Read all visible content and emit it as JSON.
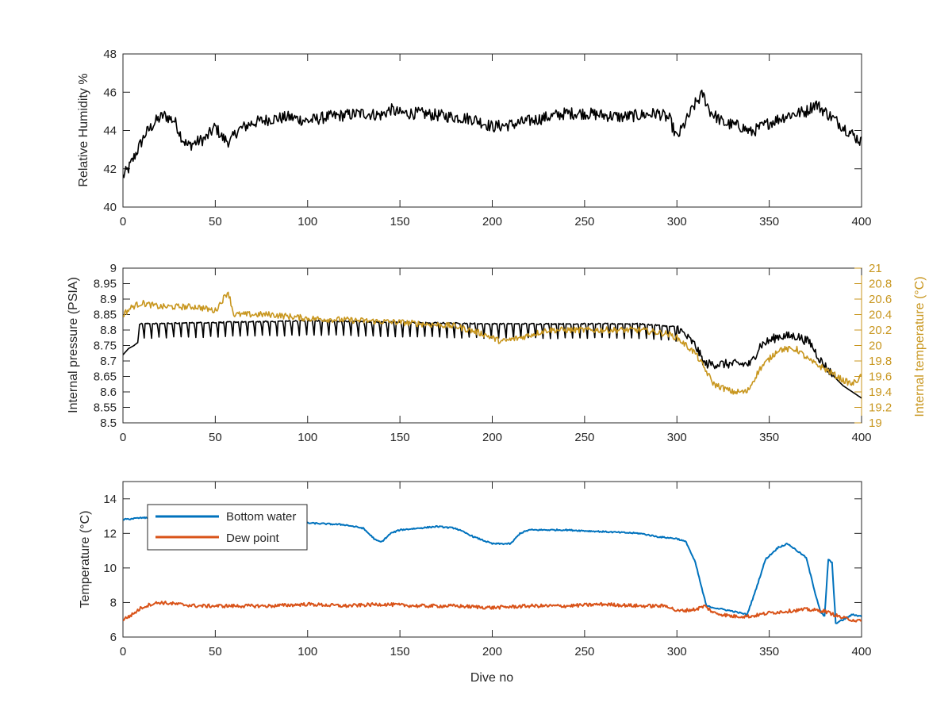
{
  "chart_data": [
    {
      "type": "line",
      "title": "",
      "xlabel": "",
      "ylabel": "Relative Humidity %",
      "xlim": [
        0,
        400
      ],
      "ylim": [
        40,
        48
      ],
      "x_ticks": [
        "0",
        "50",
        "100",
        "150",
        "200",
        "250",
        "300",
        "350",
        "400"
      ],
      "y_ticks": [
        "40",
        "42",
        "44",
        "46",
        "48"
      ],
      "grid": false,
      "series": [
        {
          "color": "#000000",
          "noise": 0.32,
          "points": [
            [
              0,
              41.6
            ],
            [
              3,
              42.0
            ],
            [
              8,
              43.0
            ],
            [
              12,
              43.8
            ],
            [
              18,
              44.5
            ],
            [
              22,
              44.8
            ],
            [
              28,
              44.5
            ],
            [
              32,
              43.6
            ],
            [
              35,
              43.2
            ],
            [
              40,
              43.4
            ],
            [
              45,
              43.6
            ],
            [
              50,
              44.2
            ],
            [
              54,
              43.6
            ],
            [
              58,
              43.4
            ],
            [
              62,
              44.0
            ],
            [
              70,
              44.4
            ],
            [
              80,
              44.6
            ],
            [
              90,
              44.7
            ],
            [
              100,
              44.5
            ],
            [
              110,
              44.7
            ],
            [
              120,
              44.8
            ],
            [
              130,
              44.9
            ],
            [
              140,
              44.8
            ],
            [
              145,
              45.1
            ],
            [
              150,
              44.9
            ],
            [
              160,
              44.9
            ],
            [
              170,
              44.8
            ],
            [
              180,
              44.7
            ],
            [
              190,
              44.6
            ],
            [
              200,
              44.2
            ],
            [
              210,
              44.3
            ],
            [
              220,
              44.5
            ],
            [
              230,
              44.7
            ],
            [
              240,
              44.9
            ],
            [
              250,
              44.9
            ],
            [
              260,
              44.8
            ],
            [
              270,
              44.7
            ],
            [
              280,
              44.8
            ],
            [
              290,
              44.9
            ],
            [
              296,
              44.6
            ],
            [
              300,
              43.6
            ],
            [
              305,
              44.5
            ],
            [
              310,
              45.4
            ],
            [
              314,
              45.9
            ],
            [
              318,
              45.0
            ],
            [
              325,
              44.4
            ],
            [
              335,
              44.2
            ],
            [
              340,
              43.9
            ],
            [
              350,
              44.4
            ],
            [
              360,
              44.8
            ],
            [
              370,
              45.0
            ],
            [
              375,
              45.4
            ],
            [
              380,
              45.0
            ],
            [
              385,
              44.6
            ],
            [
              390,
              44.2
            ],
            [
              395,
              43.8
            ],
            [
              400,
              43.4
            ]
          ]
        }
      ]
    },
    {
      "type": "line",
      "title": "",
      "xlabel": "",
      "ylabel": "Internal pressure (PSIA)",
      "ylabel_right": "Internal temperature (°C)",
      "xlim": [
        0,
        400
      ],
      "ylim": [
        8.5,
        9.0
      ],
      "ylim_right": [
        19,
        21
      ],
      "x_ticks": [
        "0",
        "50",
        "100",
        "150",
        "200",
        "250",
        "300",
        "350",
        "400"
      ],
      "y_ticks": [
        "8.5",
        "8.55",
        "8.6",
        "8.65",
        "8.7",
        "8.75",
        "8.8",
        "8.85",
        "8.9",
        "8.95",
        "9"
      ],
      "y_ticks_right": [
        "19",
        "19.2",
        "19.4",
        "19.6",
        "19.8",
        "20",
        "20.2",
        "20.4",
        "20.6",
        "20.8",
        "21"
      ],
      "grid": false,
      "series": [
        {
          "axis": "left",
          "color": "#000000",
          "saw_depth": 0.055,
          "saw_period": 4,
          "saw_range": [
            8,
            300
          ],
          "points": [
            [
              0,
              8.72
            ],
            [
              3,
              8.74
            ],
            [
              6,
              8.75
            ],
            [
              8,
              8.76
            ],
            [
              9,
              8.82
            ],
            [
              100,
              8.83
            ],
            [
              200,
              8.82
            ],
            [
              280,
              8.82
            ],
            [
              300,
              8.81
            ],
            [
              305,
              8.78
            ],
            [
              310,
              8.75
            ],
            [
              315,
              8.69
            ],
            [
              330,
              8.69
            ],
            [
              340,
              8.69
            ],
            [
              345,
              8.75
            ],
            [
              355,
              8.78
            ],
            [
              365,
              8.78
            ],
            [
              372,
              8.76
            ],
            [
              378,
              8.7
            ],
            [
              385,
              8.65
            ],
            [
              390,
              8.62
            ],
            [
              395,
              8.6
            ],
            [
              400,
              8.58
            ]
          ]
        },
        {
          "axis": "right",
          "color": "#C8961E",
          "noise": 0.04,
          "points": [
            [
              0,
              20.4
            ],
            [
              5,
              20.5
            ],
            [
              10,
              20.55
            ],
            [
              20,
              20.5
            ],
            [
              30,
              20.5
            ],
            [
              40,
              20.5
            ],
            [
              50,
              20.45
            ],
            [
              57,
              20.7
            ],
            [
              60,
              20.4
            ],
            [
              80,
              20.4
            ],
            [
              100,
              20.35
            ],
            [
              150,
              20.3
            ],
            [
              180,
              20.25
            ],
            [
              195,
              20.15
            ],
            [
              205,
              20.05
            ],
            [
              215,
              20.1
            ],
            [
              230,
              20.2
            ],
            [
              250,
              20.2
            ],
            [
              280,
              20.2
            ],
            [
              295,
              20.15
            ],
            [
              300,
              20.1
            ],
            [
              310,
              19.9
            ],
            [
              315,
              19.7
            ],
            [
              320,
              19.5
            ],
            [
              330,
              19.4
            ],
            [
              338,
              19.4
            ],
            [
              345,
              19.7
            ],
            [
              355,
              19.95
            ],
            [
              365,
              19.95
            ],
            [
              372,
              19.8
            ],
            [
              380,
              19.7
            ],
            [
              390,
              19.55
            ],
            [
              395,
              19.5
            ],
            [
              400,
              19.6
            ]
          ]
        }
      ]
    },
    {
      "type": "line",
      "title": "",
      "xlabel": "Dive no",
      "ylabel": "Temperature (°C)",
      "xlim": [
        0,
        400
      ],
      "ylim": [
        6,
        15
      ],
      "x_ticks": [
        "0",
        "50",
        "100",
        "150",
        "200",
        "250",
        "300",
        "350",
        "400"
      ],
      "y_ticks": [
        "6",
        "8",
        "10",
        "12",
        "14"
      ],
      "grid": false,
      "legend_location": "top-left",
      "series": [
        {
          "name": "Bottom water",
          "color": "#0072BD",
          "noise": 0.04,
          "points": [
            [
              0,
              12.8
            ],
            [
              10,
              12.9
            ],
            [
              20,
              12.9
            ],
            [
              40,
              12.8
            ],
            [
              60,
              12.7
            ],
            [
              80,
              12.8
            ],
            [
              100,
              12.6
            ],
            [
              120,
              12.5
            ],
            [
              130,
              12.3
            ],
            [
              137,
              11.6
            ],
            [
              140,
              11.5
            ],
            [
              145,
              12.0
            ],
            [
              150,
              12.2
            ],
            [
              170,
              12.4
            ],
            [
              180,
              12.3
            ],
            [
              190,
              11.8
            ],
            [
              200,
              11.4
            ],
            [
              210,
              11.4
            ],
            [
              215,
              12.0
            ],
            [
              220,
              12.2
            ],
            [
              240,
              12.2
            ],
            [
              260,
              12.1
            ],
            [
              280,
              12.0
            ],
            [
              290,
              11.8
            ],
            [
              300,
              11.7
            ],
            [
              305,
              11.5
            ],
            [
              310,
              10.3
            ],
            [
              314,
              8.6
            ],
            [
              316,
              7.8
            ],
            [
              320,
              7.7
            ],
            [
              330,
              7.5
            ],
            [
              338,
              7.3
            ],
            [
              342,
              8.5
            ],
            [
              348,
              10.5
            ],
            [
              355,
              11.2
            ],
            [
              360,
              11.4
            ],
            [
              365,
              11.0
            ],
            [
              370,
              10.6
            ],
            [
              375,
              8.5
            ],
            [
              378,
              7.4
            ],
            [
              380,
              7.2
            ],
            [
              382,
              10.5
            ],
            [
              384,
              10.3
            ],
            [
              386,
              6.8
            ],
            [
              390,
              7.0
            ],
            [
              395,
              7.3
            ],
            [
              400,
              7.2
            ]
          ]
        },
        {
          "name": "Dew point",
          "color": "#D95319",
          "noise": 0.1,
          "points": [
            [
              0,
              7.0
            ],
            [
              5,
              7.3
            ],
            [
              10,
              7.7
            ],
            [
              15,
              7.9
            ],
            [
              20,
              8.0
            ],
            [
              30,
              7.9
            ],
            [
              40,
              7.8
            ],
            [
              60,
              7.8
            ],
            [
              80,
              7.8
            ],
            [
              100,
              7.9
            ],
            [
              120,
              7.8
            ],
            [
              140,
              7.9
            ],
            [
              160,
              7.8
            ],
            [
              180,
              7.8
            ],
            [
              200,
              7.7
            ],
            [
              220,
              7.8
            ],
            [
              240,
              7.8
            ],
            [
              260,
              7.9
            ],
            [
              280,
              7.8
            ],
            [
              295,
              7.8
            ],
            [
              300,
              7.5
            ],
            [
              310,
              7.6
            ],
            [
              315,
              7.8
            ],
            [
              320,
              7.4
            ],
            [
              330,
              7.2
            ],
            [
              340,
              7.2
            ],
            [
              350,
              7.4
            ],
            [
              360,
              7.5
            ],
            [
              370,
              7.6
            ],
            [
              380,
              7.5
            ],
            [
              390,
              7.1
            ],
            [
              395,
              7.0
            ],
            [
              400,
              6.9
            ]
          ]
        }
      ]
    }
  ]
}
